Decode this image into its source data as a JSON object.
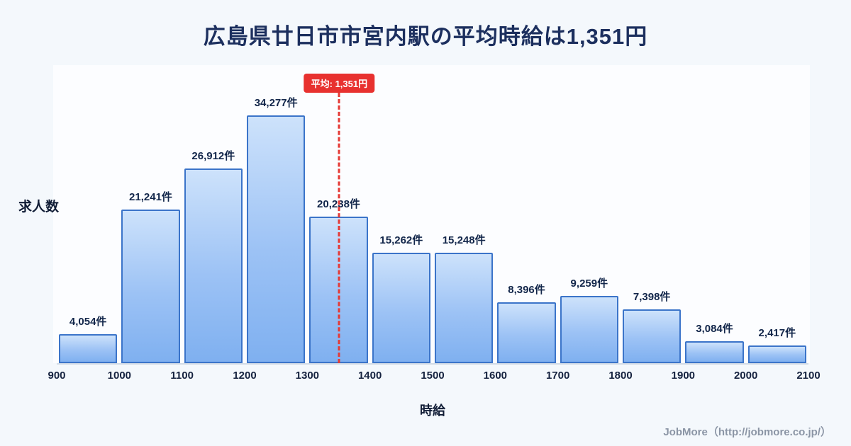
{
  "page": {
    "title": "広島県廿日市市宮内駅の平均時給は1,351円",
    "footer": "JobMore（http://jobmore.co.jp/）"
  },
  "chart_data": {
    "type": "bar",
    "title": "広島県廿日市市宮内駅の平均時給は1,351円",
    "xlabel": "時給",
    "ylabel": "求人数",
    "x_ticks": [
      900,
      1000,
      1100,
      1200,
      1300,
      1400,
      1500,
      1600,
      1700,
      1800,
      1900,
      2000,
      2100
    ],
    "categories": [
      "900-1000",
      "1000-1100",
      "1100-1200",
      "1200-1300",
      "1300-1400",
      "1400-1500",
      "1500-1600",
      "1600-1700",
      "1700-1800",
      "1800-1900",
      "1900-2000",
      "2000-2100"
    ],
    "values": [
      4054,
      21241,
      26912,
      34277,
      20238,
      15262,
      15248,
      8396,
      9259,
      7398,
      3084,
      2417
    ],
    "value_labels": [
      "4,054件",
      "21,241件",
      "26,912件",
      "34,277件",
      "20,238件",
      "15,262件",
      "15,248件",
      "8,396件",
      "9,259件",
      "7,398件",
      "3,084件",
      "2,417件"
    ],
    "average": 1351,
    "average_label": "平均: 1,351円",
    "ylim": [
      0,
      34277
    ],
    "legend": "none",
    "grid": "off",
    "colors": {
      "bar_fill_top": "#cde2fb",
      "bar_fill_bottom": "#7fb0f0",
      "bar_border": "#3b74c9",
      "average_line": "#e53935",
      "average_badge_bg": "#e8312f",
      "title_color": "#1c2f5e",
      "background": "#f4f8fc"
    }
  }
}
